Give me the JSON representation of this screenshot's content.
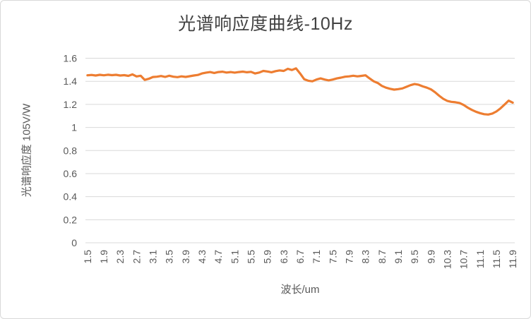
{
  "chart": {
    "title": "光谱响应度曲线-10Hz",
    "x_axis_title": "波长/um",
    "y_axis_title": "光谱响应度 105V/W",
    "colors": {
      "line": "#ED7D31",
      "gridline": "#D9D9D9",
      "tick_text": "#595959",
      "title_text": "#424242",
      "background": "#FFFFFF",
      "border": "#D9D9D9"
    }
  },
  "chart_data": {
    "type": "line",
    "title": "光谱响应度曲线-10Hz",
    "xlabel": "波长/um",
    "ylabel": "光谱响应度 105V/W",
    "grid": true,
    "legend": false,
    "ylim": [
      0,
      1.6
    ],
    "y_tick_labels": [
      "0",
      "0.2",
      "0.4",
      "0.6",
      "0.8",
      "1",
      "1.2",
      "1.4",
      "1.6"
    ],
    "y_ticks": [
      0,
      0.2,
      0.4,
      0.6,
      0.8,
      1,
      1.2,
      1.4,
      1.6
    ],
    "x_tick_labels": [
      "1.5",
      "1.9",
      "2.3",
      "2.7",
      "3.1",
      "3.5",
      "3.9",
      "4.3",
      "4.7",
      "5.1",
      "5.5",
      "5.9",
      "6.3",
      "6.7",
      "7.1",
      "7.5",
      "7.9",
      "8.3",
      "8.7",
      "9.1",
      "9.5",
      "9.9",
      "10.3",
      "10.7",
      "11.1",
      "11.5",
      "11.9"
    ],
    "x_start": 1.5,
    "x_step": 0.1,
    "x": [
      1.5,
      1.6,
      1.7,
      1.8,
      1.9,
      2.0,
      2.1,
      2.2,
      2.3,
      2.4,
      2.5,
      2.6,
      2.7,
      2.8,
      2.9,
      3.0,
      3.1,
      3.2,
      3.3,
      3.4,
      3.5,
      3.6,
      3.7,
      3.8,
      3.9,
      4.0,
      4.1,
      4.2,
      4.3,
      4.4,
      4.5,
      4.6,
      4.7,
      4.8,
      4.9,
      5.0,
      5.1,
      5.2,
      5.3,
      5.4,
      5.5,
      5.6,
      5.7,
      5.8,
      5.9,
      6.0,
      6.1,
      6.2,
      6.3,
      6.4,
      6.5,
      6.6,
      6.7,
      6.8,
      6.9,
      7.0,
      7.1,
      7.2,
      7.3,
      7.4,
      7.5,
      7.6,
      7.7,
      7.8,
      7.9,
      8.0,
      8.1,
      8.2,
      8.3,
      8.4,
      8.5,
      8.6,
      8.7,
      8.8,
      8.9,
      9.0,
      9.1,
      9.2,
      9.3,
      9.4,
      9.5,
      9.6,
      9.7,
      9.8,
      9.9,
      10.0,
      10.1,
      10.2,
      10.3,
      10.4,
      10.5,
      10.6,
      10.7,
      10.8,
      10.9,
      11.0,
      11.1,
      11.2,
      11.3,
      11.4,
      11.5,
      11.6,
      11.7,
      11.8,
      11.9
    ],
    "values": [
      1.452,
      1.455,
      1.45,
      1.456,
      1.452,
      1.457,
      1.453,
      1.456,
      1.45,
      1.453,
      1.447,
      1.46,
      1.442,
      1.448,
      1.412,
      1.422,
      1.437,
      1.44,
      1.446,
      1.438,
      1.448,
      1.44,
      1.436,
      1.443,
      1.438,
      1.444,
      1.45,
      1.455,
      1.468,
      1.475,
      1.48,
      1.472,
      1.48,
      1.483,
      1.476,
      1.48,
      1.475,
      1.48,
      1.484,
      1.478,
      1.482,
      1.468,
      1.476,
      1.49,
      1.485,
      1.478,
      1.488,
      1.494,
      1.49,
      1.508,
      1.498,
      1.512,
      1.468,
      1.418,
      1.405,
      1.4,
      1.415,
      1.425,
      1.415,
      1.408,
      1.415,
      1.425,
      1.432,
      1.44,
      1.443,
      1.448,
      1.443,
      1.447,
      1.452,
      1.425,
      1.4,
      1.385,
      1.36,
      1.345,
      1.335,
      1.328,
      1.332,
      1.338,
      1.352,
      1.366,
      1.376,
      1.37,
      1.356,
      1.345,
      1.33,
      1.305,
      1.275,
      1.248,
      1.23,
      1.222,
      1.218,
      1.212,
      1.195,
      1.172,
      1.152,
      1.136,
      1.124,
      1.115,
      1.112,
      1.12,
      1.138,
      1.165,
      1.198,
      1.232,
      1.215
    ]
  }
}
